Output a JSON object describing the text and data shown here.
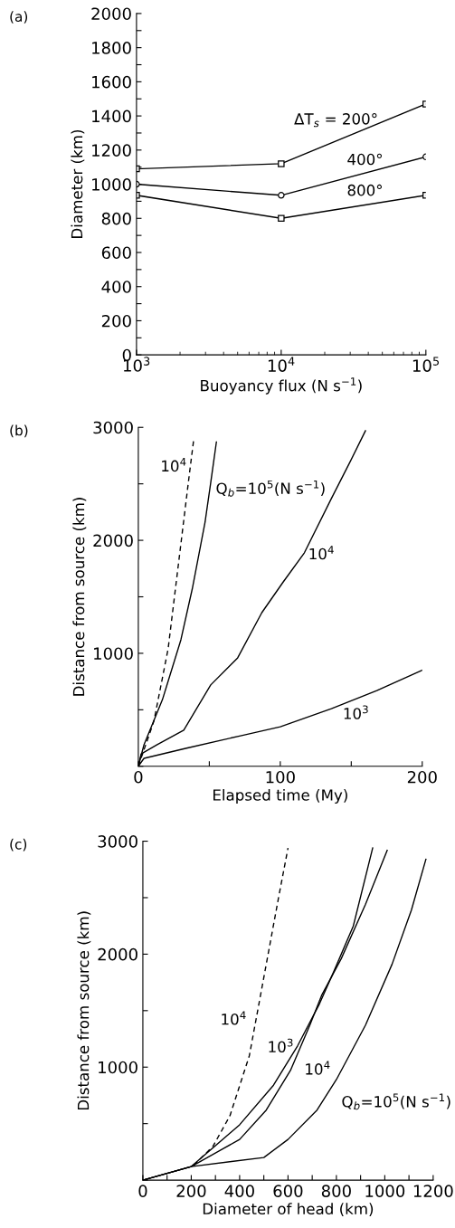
{
  "chart_data": [
    {
      "type": "line",
      "title": "(a)",
      "xlabel": "Buoyancy flux (N s$^{−1}$)",
      "ylabel": "Diameter (km)",
      "log": "x",
      "x": [
        1000,
        10000,
        100000
      ],
      "xlim": [
        1000,
        100000
      ],
      "xticks": [
        {
          "value": 1000,
          "label": "10$^{3}$"
        },
        {
          "value": 10000,
          "label": "10$^{4}$"
        },
        {
          "value": 100000,
          "label": "10$^{5}$"
        }
      ],
      "ylim": [
        0,
        2000
      ],
      "yticks": [
        0,
        {
          "value": 100,
          "label": null
        },
        200,
        {
          "value": 300,
          "label": null
        },
        400,
        {
          "value": 500,
          "label": null
        },
        600,
        {
          "value": 700,
          "label": null
        },
        800,
        {
          "value": 900,
          "label": null
        },
        1000,
        {
          "value": 1100,
          "label": null
        },
        1200,
        {
          "value": 1300,
          "label": null
        },
        1400,
        {
          "value": 1500,
          "label": null
        },
        1600,
        {
          "value": 1700,
          "label": null
        },
        1800,
        {
          "value": 1900,
          "label": null
        },
        2000
      ],
      "grid": false,
      "series": [
        {
          "name": "ΔT$_{s}$ = 200°",
          "color": "#000000",
          "marker": "square",
          "values": [
            1090,
            1120,
            1470
          ]
        },
        {
          "name": "400°",
          "color": "#000000",
          "marker": "circle",
          "values": [
            1000,
            935,
            1160
          ]
        },
        {
          "name": "800°",
          "color": "#000000",
          "marker": "square",
          "values": [
            935,
            800,
            935
          ]
        }
      ]
    },
    {
      "type": "line",
      "title": "(b)",
      "xlabel": "Elapsed time (My)",
      "ylabel": "Distance from source (km)",
      "xlim": [
        0,
        200
      ],
      "xticks": [
        0,
        {
          "value": 50,
          "label": null
        },
        100,
        {
          "value": 150,
          "label": null
        },
        200
      ],
      "ylim": [
        0,
        3000
      ],
      "yticks": [
        {
          "value": 0,
          "label": null
        },
        {
          "value": 500,
          "label": null
        },
        1000,
        {
          "value": 1500,
          "label": null
        },
        2000,
        {
          "value": 2500,
          "label": null
        },
        3000
      ],
      "grid": false,
      "series": [
        {
          "name": "10$^{4}$",
          "color": "#000000",
          "line_style": "dashed",
          "x": [
            0,
            11,
            21,
            30,
            36,
            39
          ],
          "values": [
            0,
            400,
            1040,
            1970,
            2590,
            2890
          ]
        },
        {
          "name": "Q$_{b}$=10$^{5}$(N s$^{−1}$)",
          "color": "#000000",
          "line_style": "solid",
          "x": [
            0,
            4,
            17,
            30,
            38,
            47,
            51,
            55
          ],
          "values": [
            0,
            190,
            590,
            1120,
            1570,
            2160,
            2510,
            2870
          ]
        },
        {
          "name": "10$^{4}$",
          "color": "#000000",
          "line_style": "solid",
          "x": [
            0,
            2,
            13,
            32,
            51,
            70,
            87,
            102,
            117,
            136,
            149,
            160
          ],
          "values": [
            0,
            110,
            190,
            320,
            720,
            960,
            1360,
            1630,
            1890,
            2370,
            2690,
            2970
          ]
        },
        {
          "name": "10$^{3}$",
          "color": "#000000",
          "line_style": "solid",
          "x": [
            0,
            4,
            34,
            72,
            100,
            136,
            168,
            200
          ],
          "values": [
            0,
            70,
            160,
            270,
            350,
            510,
            670,
            850
          ]
        }
      ]
    },
    {
      "type": "line",
      "title": "(c)",
      "xlabel": "Diameter of head (km)",
      "ylabel": "Distance from source (km)",
      "xlim": [
        0,
        1200
      ],
      "xticks": [
        0,
        {
          "value": 100,
          "label": null
        },
        200,
        {
          "value": 300,
          "label": null
        },
        400,
        {
          "value": 500,
          "label": null
        },
        600,
        {
          "value": 700,
          "label": null
        },
        800,
        {
          "value": 900,
          "label": null
        },
        1000,
        {
          "value": 1100,
          "label": null
        },
        1200
      ],
      "ylim": [
        0,
        3000
      ],
      "yticks": [
        {
          "value": 0,
          "label": null
        },
        {
          "value": 500,
          "label": null
        },
        1000,
        {
          "value": 1500,
          "label": null
        },
        2000,
        {
          "value": 2500,
          "label": null
        },
        3000
      ],
      "grid": false,
      "series": [
        {
          "name": "10$^{4}$",
          "color": "#000000",
          "line_style": "dashed",
          "x": [
            210,
            290,
            360,
            440,
            510,
            560,
            600
          ],
          "values": [
            130,
            300,
            570,
            1100,
            1910,
            2490,
            2940
          ]
        },
        {
          "name": "10$^{3}$",
          "color": "#000000",
          "line_style": "solid",
          "x": [
            0,
            200,
            400,
            540,
            640,
            730,
            790,
            870,
            950
          ],
          "values": [
            0,
            120,
            490,
            840,
            1190,
            1560,
            1850,
            2250,
            2940
          ]
        },
        {
          "name": "10$^{4}$",
          "color": "#000000",
          "line_style": "solid",
          "x": [
            0,
            200,
            400,
            510,
            610,
            690,
            740,
            820,
            920,
            1010
          ],
          "values": [
            0,
            120,
            360,
            620,
            970,
            1370,
            1640,
            1960,
            2440,
            2920
          ]
        },
        {
          "name": "Q$_{b}$=10$^{5}$(N s$^{−1}$)",
          "color": "#000000",
          "line_style": "solid",
          "x": [
            0,
            200,
            500,
            600,
            720,
            800,
            920,
            1030,
            1110,
            1170
          ],
          "values": [
            0,
            120,
            200,
            360,
            620,
            890,
            1370,
            1910,
            2390,
            2840
          ]
        }
      ]
    }
  ]
}
